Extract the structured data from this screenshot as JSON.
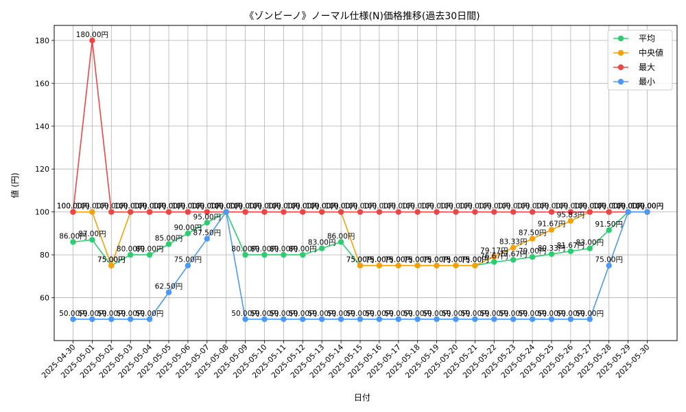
{
  "chart_data": {
    "type": "line",
    "title": "《ゾンビーノ》ノーマル仕様(N)価格推移(過去30日間)",
    "xlabel": "日付",
    "ylabel": "値 (円)",
    "ylim": [
      40,
      187
    ],
    "yticks": [
      60,
      80,
      100,
      120,
      140,
      160,
      180
    ],
    "grid": true,
    "legend_position": "top-right",
    "value_suffix": "円",
    "categories": [
      "2025-04-30",
      "2025-05-01",
      "2025-05-02",
      "2025-05-03",
      "2025-05-04",
      "2025-05-05",
      "2025-05-06",
      "2025-05-07",
      "2025-05-08",
      "2025-05-09",
      "2025-05-10",
      "2025-05-11",
      "2025-05-12",
      "2025-05-13",
      "2025-05-14",
      "2025-05-15",
      "2025-05-16",
      "2025-05-17",
      "2025-05-18",
      "2025-05-19",
      "2025-05-20",
      "2025-05-21",
      "2025-05-22",
      "2025-05-23",
      "2025-05-24",
      "2025-05-25",
      "2025-05-26",
      "2025-05-27",
      "2025-05-28",
      "2025-05-29",
      "2025-05-30"
    ],
    "series": [
      {
        "name": "平均",
        "color": "#2ecc71",
        "values": [
          86,
          87,
          75,
          80,
          80,
          85,
          90,
          95,
          100,
          80,
          80,
          80,
          80,
          83,
          86,
          75,
          75,
          75,
          75,
          75,
          75,
          75,
          76.67,
          77.67,
          79,
          80.33,
          81.67,
          83,
          91.5,
          100,
          100
        ],
        "labels": [
          "86.00円",
          "87.00円",
          "75.00円",
          "80.00円",
          "80.00円",
          "85.00円",
          "90.00円",
          "95.00円",
          "100.00円",
          "80.00円",
          "80.00円",
          "80.00円",
          "80.00円",
          "83.00円",
          "86.00円",
          "75.00円",
          "75.00円",
          "75.00円",
          "75.00円",
          "75.00円",
          "75.00円",
          "75.00円",
          "76.67円",
          "77.67円",
          "79.00円",
          "80.33円",
          "81.67円",
          "83.00円",
          "91.50円",
          "100.00円",
          "100.00円"
        ]
      },
      {
        "name": "中央値",
        "color": "#f5a105",
        "values": [
          100,
          100,
          75,
          100,
          100,
          100,
          100,
          100,
          100,
          100,
          100,
          100,
          100,
          100,
          100,
          75,
          75,
          75,
          75,
          75,
          75,
          75,
          79.17,
          83.33,
          87.5,
          91.67,
          95.83,
          100,
          100,
          100,
          100
        ],
        "labels": [
          "100.00円",
          "100.00円",
          "75.00円",
          "100.00円",
          "100.00円",
          "100.00円",
          "100.00円",
          "100.00円",
          "100.00円",
          "100.00円",
          "100.00円",
          "100.00円",
          "100.00円",
          "100.00円",
          "100.00円",
          "75.00円",
          "75.00円",
          "75.00円",
          "75.00円",
          "75.00円",
          "75.00円",
          "75.00円",
          "79.17円",
          "83.33円",
          "87.50円",
          "91.67円",
          "95.83円",
          "100.00円",
          "100.00円",
          "100.00円",
          "100.00円"
        ]
      },
      {
        "name": "最大",
        "color": "#ef4444",
        "values": [
          100,
          180,
          100,
          100,
          100,
          100,
          100,
          100,
          100,
          100,
          100,
          100,
          100,
          100,
          100,
          100,
          100,
          100,
          100,
          100,
          100,
          100,
          100,
          100,
          100,
          100,
          100,
          100,
          100,
          100,
          100
        ],
        "labels": [
          "100.00円",
          "180.00円",
          "100.00円",
          "100.00円",
          "100.00円",
          "100.00円",
          "100.00円",
          "100.00円",
          "100.00円",
          "100.00円",
          "100.00円",
          "100.00円",
          "100.00円",
          "100.00円",
          "100.00円",
          "100.00円",
          "100.00円",
          "100.00円",
          "100.00円",
          "100.00円",
          "100.00円",
          "100.00円",
          "100.00円",
          "100.00円",
          "100.00円",
          "100.00円",
          "100.00円",
          "100.00円",
          "100.00円",
          "100.00円",
          "100.00円"
        ]
      },
      {
        "name": "最小",
        "color": "#4a98f7",
        "values": [
          50,
          50,
          50,
          50,
          50,
          62.5,
          75,
          87.5,
          100,
          50,
          50,
          50,
          50,
          50,
          50,
          50,
          50,
          50,
          50,
          50,
          50,
          50,
          50,
          50,
          50,
          50,
          50,
          50,
          75,
          100,
          100
        ],
        "labels": [
          "50.00円",
          "50.00円",
          "50.00円",
          "50.00円",
          "50.00円",
          "62.50円",
          "75.00円",
          "87.50円",
          "100.00円",
          "50.00円",
          "50.00円",
          "50.00円",
          "50.00円",
          "50.00円",
          "50.00円",
          "50.00円",
          "50.00円",
          "50.00円",
          "50.00円",
          "50.00円",
          "50.00円",
          "50.00円",
          "50.00円",
          "50.00円",
          "50.00円",
          "50.00円",
          "50.00円",
          "50.00円",
          "75.00円",
          "100.00円",
          "100.00円"
        ]
      }
    ]
  }
}
